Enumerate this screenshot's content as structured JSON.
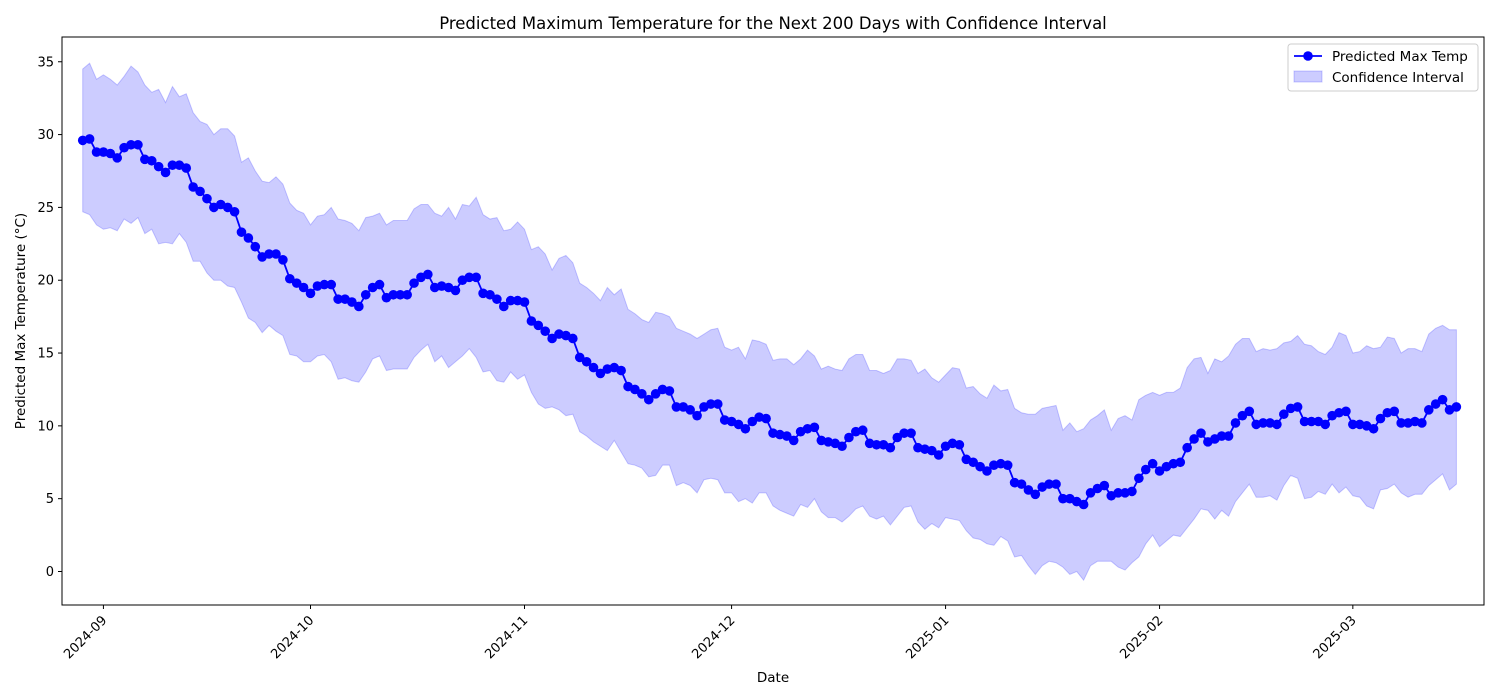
{
  "chart_data": {
    "type": "line",
    "title": "Predicted Maximum Temperature for the Next 200 Days with Confidence Interval",
    "xlabel": "Date",
    "ylabel": "Predicted Max Temperature (°C)",
    "x_start": "2024-08-29",
    "x_end": "2025-03-16",
    "xlim": [
      "2024-08-26",
      "2025-03-20"
    ],
    "ylim": [
      -2.3,
      36.7
    ],
    "yticks": [
      0,
      5,
      10,
      15,
      20,
      25,
      30,
      35
    ],
    "xtick_labels": [
      "2024-09",
      "2024-10",
      "2024-11",
      "2024-12",
      "2025-01",
      "2025-02",
      "2025-03"
    ],
    "xtick_dates": [
      "2024-09-01",
      "2024-10-01",
      "2024-11-01",
      "2024-12-01",
      "2025-01-01",
      "2025-02-01",
      "2025-03-01"
    ],
    "grid": false,
    "legend_position": "top-right",
    "series": [
      {
        "name": "Predicted Max Temp",
        "color": "#0000ff",
        "marker": "circle",
        "values": [
          29.6,
          29.7,
          28.8,
          28.8,
          28.7,
          28.4,
          29.1,
          29.3,
          29.3,
          28.3,
          28.2,
          27.8,
          27.4,
          27.9,
          27.9,
          27.7,
          26.4,
          26.1,
          25.6,
          25.0,
          25.2,
          25.0,
          24.7,
          23.3,
          22.9,
          22.3,
          21.6,
          21.8,
          21.8,
          21.4,
          20.1,
          19.8,
          19.5,
          19.1,
          19.6,
          19.7,
          19.7,
          18.7,
          18.7,
          18.5,
          18.2,
          19.0,
          19.5,
          19.7,
          18.8,
          19.0,
          19.0,
          19.0,
          19.8,
          20.2,
          20.4,
          19.5,
          19.6,
          19.5,
          19.3,
          20.0,
          20.2,
          20.2,
          19.1,
          19.0,
          18.7,
          18.2,
          18.6,
          18.6,
          18.5,
          17.2,
          16.9,
          16.5,
          16.0,
          16.3,
          16.2,
          16.0,
          14.7,
          14.4,
          14.0,
          13.6,
          13.9,
          14.0,
          13.8,
          12.7,
          12.5,
          12.2,
          11.8,
          12.2,
          12.5,
          12.4,
          11.3,
          11.3,
          11.1,
          10.7,
          11.3,
          11.5,
          11.5,
          10.4,
          10.3,
          10.1,
          9.8,
          10.3,
          10.6,
          10.5,
          9.5,
          9.4,
          9.3,
          9.0,
          9.6,
          9.8,
          9.9,
          9.0,
          8.9,
          8.8,
          8.6,
          9.2,
          9.6,
          9.7,
          8.8,
          8.7,
          8.7,
          8.5,
          9.2,
          9.5,
          9.5,
          8.5,
          8.4,
          8.3,
          8.0,
          8.6,
          8.8,
          8.7,
          7.7,
          7.5,
          7.2,
          6.9,
          7.3,
          7.4,
          7.3,
          6.1,
          6.0,
          5.6,
          5.3,
          5.8,
          6.0,
          6.0,
          5.0,
          5.0,
          4.8,
          4.6,
          5.4,
          5.7,
          5.9,
          5.2,
          5.4,
          5.4,
          5.5,
          6.4,
          7.0,
          7.4,
          6.9,
          7.2,
          7.4,
          7.5,
          8.5,
          9.1,
          9.5,
          8.9,
          9.1,
          9.3,
          9.3,
          10.2,
          10.7,
          11.0,
          10.1,
          10.2,
          10.2,
          10.1,
          10.8,
          11.2,
          11.3,
          10.3,
          10.3,
          10.3,
          10.1,
          10.7,
          10.9,
          11.0,
          10.1,
          10.1,
          10.0,
          9.8,
          10.5,
          10.9,
          11.0,
          10.2,
          10.2,
          10.3,
          10.2,
          11.1,
          11.5,
          11.8,
          11.1,
          11.3
        ]
      },
      {
        "name": "Confidence Interval",
        "color": "#0000ff",
        "fill_opacity": 0.2,
        "upper": [
          34.5,
          34.9,
          33.8,
          34.1,
          33.8,
          33.4,
          34.0,
          34.7,
          34.3,
          33.4,
          32.9,
          33.1,
          32.2,
          33.3,
          32.6,
          32.8,
          31.5,
          30.9,
          30.7,
          30.0,
          30.4,
          30.4,
          29.9,
          28.1,
          28.4,
          27.5,
          26.8,
          26.7,
          27.1,
          26.6,
          25.3,
          24.8,
          24.6,
          23.8,
          24.4,
          24.5,
          25.0,
          24.2,
          24.1,
          23.9,
          23.4,
          24.3,
          24.4,
          24.6,
          23.8,
          24.1,
          24.1,
          24.1,
          24.9,
          25.2,
          25.2,
          24.6,
          24.4,
          25.0,
          24.2,
          25.2,
          25.1,
          25.7,
          24.5,
          24.2,
          24.3,
          23.4,
          23.5,
          24.0,
          23.5,
          22.1,
          22.3,
          21.8,
          20.7,
          21.5,
          21.7,
          21.2,
          19.8,
          19.5,
          19.1,
          18.6,
          19.5,
          19.0,
          19.4,
          18.0,
          17.7,
          17.3,
          17.1,
          17.8,
          17.7,
          17.5,
          16.7,
          16.5,
          16.3,
          16.0,
          16.3,
          16.6,
          16.7,
          15.4,
          15.2,
          15.4,
          14.6,
          15.9,
          15.8,
          15.6,
          14.5,
          14.6,
          14.6,
          14.2,
          14.6,
          15.2,
          14.8,
          13.9,
          14.1,
          13.9,
          13.8,
          14.6,
          14.9,
          14.9,
          13.8,
          13.8,
          13.6,
          13.8,
          14.6,
          14.6,
          14.5,
          13.6,
          13.9,
          13.3,
          13.0,
          13.5,
          14.0,
          13.9,
          12.6,
          12.7,
          12.2,
          11.9,
          12.8,
          12.4,
          12.5,
          11.2,
          10.9,
          10.8,
          10.8,
          11.2,
          11.3,
          11.4,
          9.7,
          10.2,
          9.6,
          9.8,
          10.4,
          10.7,
          11.1,
          9.7,
          10.5,
          10.7,
          10.4,
          11.8,
          12.1,
          12.3,
          12.1,
          12.3,
          12.3,
          12.6,
          14.0,
          14.6,
          14.7,
          13.6,
          14.6,
          14.4,
          14.8,
          15.6,
          16.0,
          16.0,
          15.1,
          15.3,
          15.2,
          15.3,
          15.7,
          15.8,
          16.2,
          15.6,
          15.5,
          15.1,
          14.9,
          15.4,
          16.4,
          16.2,
          15.0,
          15.1,
          15.5,
          15.3,
          15.4,
          16.1,
          16.0,
          15.0,
          15.3,
          15.3,
          15.1,
          16.3,
          16.7,
          16.9,
          16.6,
          16.6
        ]
      }
    ]
  }
}
